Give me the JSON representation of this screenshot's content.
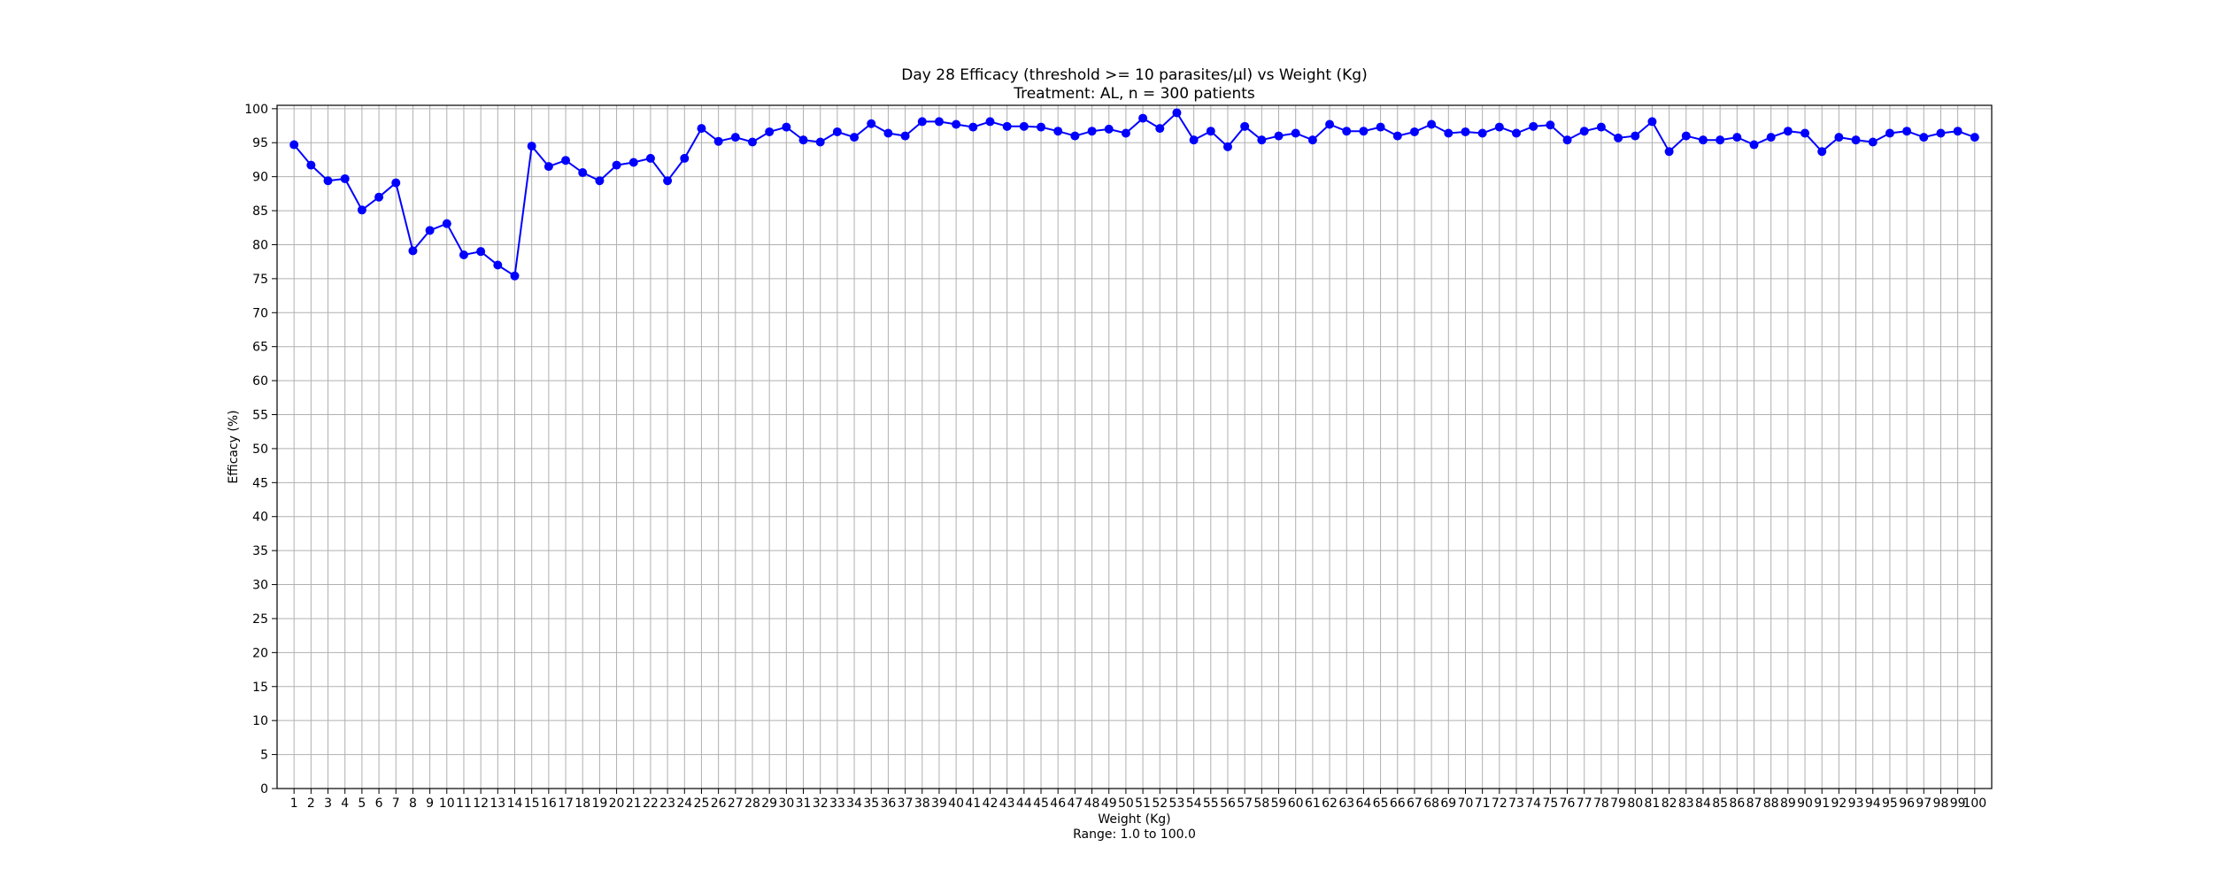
{
  "chart_data": {
    "type": "line",
    "title": "Day 28 Efficacy (threshold >= 10 parasites/µl) vs Weight (Kg)",
    "subtitle": "Treatment: AL, n = 300 patients",
    "xlabel": "Weight (Kg)",
    "xlabel_note": "Range: 1.0 to 100.0",
    "ylabel": "Efficacy (%)",
    "xlim": [
      0,
      101
    ],
    "ylim": [
      0,
      100.5
    ],
    "yticks": [
      0,
      5,
      10,
      15,
      20,
      25,
      30,
      35,
      40,
      45,
      50,
      55,
      60,
      65,
      70,
      75,
      80,
      85,
      90,
      95,
      100
    ],
    "grid": true,
    "legend": "none",
    "series": [
      {
        "color": "#0000ff",
        "marker": "circle",
        "x": [
          1,
          2,
          3,
          4,
          5,
          6,
          7,
          8,
          9,
          10,
          11,
          12,
          13,
          14,
          15,
          16,
          17,
          18,
          19,
          20,
          21,
          22,
          23,
          24,
          25,
          26,
          27,
          28,
          29,
          30,
          31,
          32,
          33,
          34,
          35,
          36,
          37,
          38,
          39,
          40,
          41,
          42,
          43,
          44,
          45,
          46,
          47,
          48,
          49,
          50,
          51,
          52,
          53,
          54,
          55,
          56,
          57,
          58,
          59,
          60,
          61,
          62,
          63,
          64,
          65,
          66,
          67,
          68,
          69,
          70,
          71,
          72,
          73,
          74,
          75,
          76,
          77,
          78,
          79,
          80,
          81,
          82,
          83,
          84,
          85,
          86,
          87,
          88,
          89,
          90,
          91,
          92,
          93,
          94,
          95,
          96,
          97,
          98,
          99,
          100
        ],
        "values": [
          94.7,
          91.7,
          89.4,
          89.7,
          85.1,
          87.0,
          89.1,
          79.1,
          82.1,
          83.1,
          78.5,
          79.0,
          77.0,
          75.4,
          94.5,
          91.5,
          92.4,
          90.6,
          89.4,
          91.7,
          92.1,
          92.7,
          89.4,
          92.7,
          97.1,
          95.2,
          95.8,
          95.1,
          96.6,
          97.3,
          95.4,
          95.1,
          96.6,
          95.8,
          97.8,
          96.4,
          96.0,
          98.1,
          98.1,
          97.7,
          97.3,
          98.1,
          97.4,
          97.4,
          97.3,
          96.7,
          96.0,
          96.7,
          97.0,
          96.4,
          98.6,
          97.1,
          99.4,
          95.4,
          96.7,
          94.4,
          97.4,
          95.4,
          96.0,
          96.4,
          95.4,
          97.7,
          96.7,
          96.7,
          97.3,
          96.0,
          96.6,
          97.7,
          96.4,
          96.6,
          96.4,
          97.3,
          96.4,
          97.4,
          97.6,
          95.4,
          96.7,
          97.3,
          95.7,
          96.0,
          98.1,
          93.7,
          96.0,
          95.4,
          95.4,
          95.8,
          94.7,
          95.8,
          96.7,
          96.4,
          93.7,
          95.8,
          95.4,
          95.1,
          96.4,
          96.7,
          95.8,
          96.4,
          96.7,
          95.8
        ]
      }
    ]
  }
}
